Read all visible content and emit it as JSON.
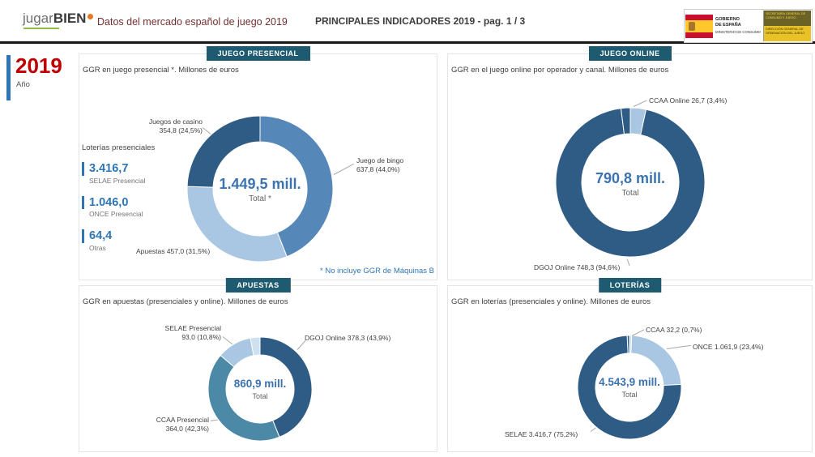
{
  "header": {
    "logo_jugar": "jugar",
    "logo_bien": "BIEN",
    "title": "Datos del mercado español de juego 2019",
    "subtitle": "PRINCIPALES INDICADORES 2019 - pag. 1 / 3",
    "gov": {
      "government_line1": "GOBIERNO",
      "government_line2": "DE ESPAÑA",
      "ministry": "MINISTERIO DE CONSUMO",
      "secretariat": "SECRETARÍA GENERAL DE CONSUMO Y JUEGO",
      "agency": "DIRECCIÓN GENERAL DE ORDENACIÓN DEL JUEGO"
    }
  },
  "slicer": {
    "year": "2019",
    "label": "Año"
  },
  "colors": {
    "accent_blue": "#2e75b6",
    "year_red": "#c00000",
    "chip_background": "#1e5a70",
    "dark_slice": "#2e5c85",
    "medium_slice": "#5587b8",
    "light_slice": "#a9c7e3",
    "teal_slice": "#4b89a6",
    "pale_slice": "#cfe0ef",
    "center_text": "#3b73b0"
  },
  "presencial_kpis": {
    "title": "Loterías presenciales",
    "items": [
      {
        "value": "3.416,7",
        "label": "SELAE Presencial"
      },
      {
        "value": "1.046,0",
        "label": "ONCE Presencial"
      },
      {
        "value": "64,4",
        "label": "Otras"
      }
    ]
  },
  "footnote": "* No incluye GGR de Máquinas B",
  "chart_data": [
    {
      "type": "pie",
      "variant": "donut",
      "title": "JUEGO PRESENCIAL",
      "subtitle": "GGR en juego presencial *. Millones de euros",
      "center_value": "1.449,5 mill.",
      "center_label": "Total *",
      "unit": "millones de euros",
      "slices": [
        {
          "label": "Juego de bingo",
          "value": 637.8,
          "pct": 44.0,
          "color": "#5587b8",
          "callout1": "Juego de bingo",
          "callout2": "637,8 (44,0%)"
        },
        {
          "label": "Apuestas",
          "value": 457.0,
          "pct": 31.5,
          "color": "#a9c7e3",
          "callout1": "Apuestas 457,0 (31,5%)",
          "callout2": ""
        },
        {
          "label": "Juegos de casino",
          "value": 354.8,
          "pct": 24.5,
          "color": "#2e5c85",
          "callout1": "Juegos de casino",
          "callout2": "354,8 (24,5%)"
        }
      ]
    },
    {
      "type": "pie",
      "variant": "donut",
      "title": "JUEGO ONLINE",
      "subtitle": "GGR en el juego online por operador y canal. Millones de euros",
      "center_value": "790,8 mill.",
      "center_label": "Total",
      "unit": "millones de euros",
      "slices": [
        {
          "label": "CCAA Online",
          "value": 26.7,
          "pct": 3.4,
          "color": "#a9c7e3",
          "callout1": "CCAA Online 26,7 (3,4%)",
          "callout2": ""
        },
        {
          "label": "DGOJ Online",
          "value": 748.3,
          "pct": 94.6,
          "color": "#2e5c85",
          "callout1": "DGOJ Online 748,3 (94,6%)",
          "callout2": ""
        },
        {
          "label": "",
          "pct": 2.0,
          "color": "#2e5c85",
          "callout1": "",
          "callout2": ""
        }
      ]
    },
    {
      "type": "pie",
      "variant": "donut",
      "title": "APUESTAS",
      "subtitle": "GGR en apuestas (presenciales y online). Millones de euros",
      "center_value": "860,9 mill.",
      "center_label": "Total",
      "unit": "millones de euros",
      "slices": [
        {
          "label": "DGOJ Online",
          "value": 378.3,
          "pct": 43.9,
          "color": "#2e5c85",
          "callout1": "DGOJ Online 378,3 (43,9%)",
          "callout2": ""
        },
        {
          "label": "CCAA Presencial",
          "value": 364.0,
          "pct": 42.3,
          "color": "#4b89a6",
          "callout1": "CCAA Presencial",
          "callout2": "364,0 (42,3%)"
        },
        {
          "label": "SELAE Presencial",
          "value": 93.0,
          "pct": 10.8,
          "color": "#a9c7e3",
          "callout1": "SELAE Presencial",
          "callout2": "93,0 (10,8%)"
        },
        {
          "label": "",
          "pct": 3.0,
          "color": "#cfe0ef",
          "callout1": "",
          "callout2": ""
        }
      ]
    },
    {
      "type": "pie",
      "variant": "donut",
      "title": "LOTERÍAS",
      "subtitle": "GGR en loterías (presenciales y online). Millones de euros",
      "center_value": "4.543,9 mill.",
      "center_label": "Total",
      "unit": "millones de euros",
      "slices": [
        {
          "label": "CCAA",
          "value": 32.2,
          "pct": 0.7,
          "color": "#cfe0ef",
          "callout1": "CCAA 32,2 (0,7%)",
          "callout2": ""
        },
        {
          "label": "ONCE",
          "value": 1061.9,
          "pct": 23.4,
          "color": "#a9c7e3",
          "callout1": "ONCE 1.061,9 (23,4%)",
          "callout2": ""
        },
        {
          "label": "SELAE",
          "value": 3416.7,
          "pct": 75.2,
          "color": "#2e5c85",
          "callout1": "SELAE 3.416,7 (75,2%)",
          "callout2": ""
        },
        {
          "label": "",
          "pct": 0.7,
          "color": "#2e5c85",
          "callout1": "",
          "callout2": ""
        }
      ]
    }
  ]
}
